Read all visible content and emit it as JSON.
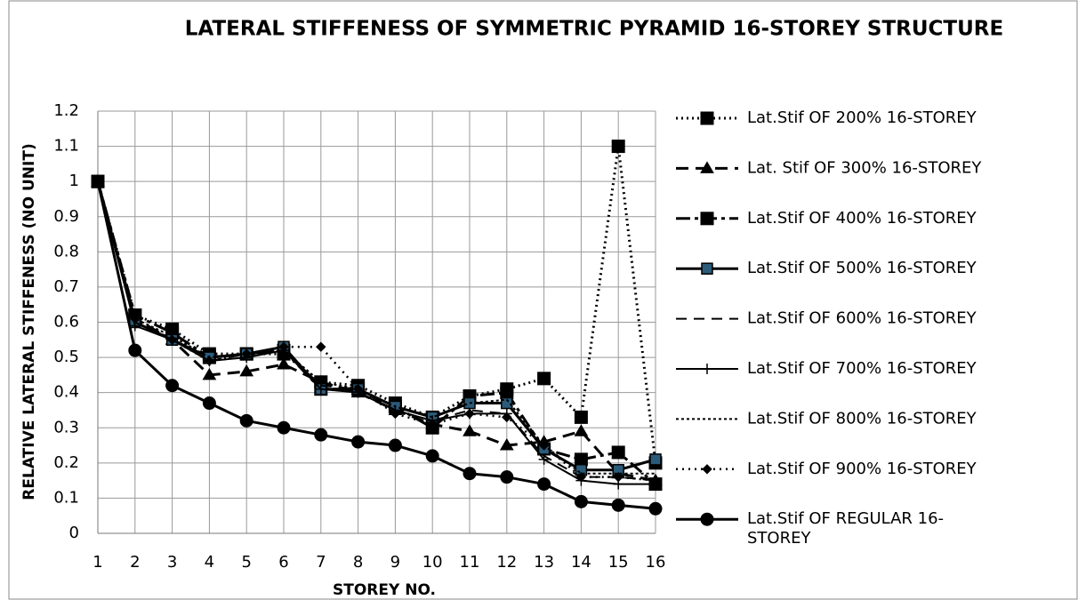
{
  "chart_data": {
    "type": "line",
    "title": "LATERAL STIFFENESS OF  SYMMETRIC PYRAMID 16-STOREY STRUCTURE",
    "xlabel": "STOREY NO.",
    "ylabel": "RELATIVE LATERAL STIFFENESS (NO UNIT)",
    "x": [
      1,
      2,
      3,
      4,
      5,
      6,
      7,
      8,
      9,
      10,
      11,
      12,
      13,
      14,
      15,
      16
    ],
    "xlim": [
      1,
      16
    ],
    "xticks": [
      1,
      2,
      3,
      4,
      5,
      6,
      7,
      8,
      9,
      10,
      11,
      12,
      13,
      14,
      15,
      16
    ],
    "ylim": [
      0,
      1.2
    ],
    "yticks": [
      0,
      0.1,
      0.2,
      0.3,
      0.4,
      0.5,
      0.6,
      0.7,
      0.8,
      0.9,
      1,
      1.1,
      1.2
    ],
    "grid": true,
    "legend": "right",
    "series": [
      {
        "name": "Lat.Stif OF 200% 16-STOREY",
        "color": "#000000",
        "values": [
          1,
          0.62,
          0.58,
          0.51,
          0.51,
          0.51,
          0.43,
          0.42,
          0.37,
          0.33,
          0.39,
          0.41,
          0.44,
          0.33,
          1.1,
          0.2
        ]
      },
      {
        "name": "Lat. Stif OF 300% 16-STOREY",
        "color": "#000000",
        "values": [
          1,
          0.61,
          0.55,
          0.45,
          0.46,
          0.48,
          0.43,
          0.4,
          0.35,
          0.31,
          0.29,
          0.25,
          0.26,
          0.29,
          0.17,
          0.15
        ]
      },
      {
        "name": "Lat.Stif OF 400% 16-STOREY",
        "color": "#000000",
        "values": [
          1,
          0.62,
          0.57,
          0.5,
          0.51,
          0.52,
          0.41,
          0.41,
          0.36,
          0.3,
          0.39,
          0.4,
          0.24,
          0.21,
          0.23,
          0.14
        ]
      },
      {
        "name": "Lat.Stif OF 500% 16-STOREY",
        "color": "#000000",
        "values": [
          1,
          0.6,
          0.55,
          0.5,
          0.51,
          0.53,
          0.41,
          0.41,
          0.36,
          0.33,
          0.37,
          0.37,
          0.24,
          0.18,
          0.18,
          0.21
        ]
      },
      {
        "name": "Lat.Stif OF 600% 16-STOREY",
        "color": "#000000",
        "values": [
          1,
          0.6,
          0.55,
          0.49,
          0.51,
          0.52,
          0.42,
          0.41,
          0.35,
          0.32,
          0.35,
          0.34,
          0.22,
          0.16,
          0.16,
          0.15
        ]
      },
      {
        "name": "Lat.Stif OF 700% 16-STOREY",
        "color": "#000000",
        "values": [
          1,
          0.59,
          0.55,
          0.49,
          0.5,
          0.52,
          0.41,
          0.4,
          0.35,
          0.32,
          0.34,
          0.34,
          0.21,
          0.15,
          0.14,
          0.14
        ]
      },
      {
        "name": "Lat.Stif OF 800% 16-STOREY",
        "color": "#000000",
        "values": [
          1,
          0.61,
          0.56,
          0.5,
          0.51,
          0.52,
          0.43,
          0.41,
          0.36,
          0.33,
          0.37,
          0.38,
          0.25,
          0.17,
          0.17,
          0.17
        ]
      },
      {
        "name": "Lat.Stif OF 900% 16-STOREY",
        "color": "#000000",
        "values": [
          1,
          0.61,
          0.55,
          0.49,
          0.51,
          0.53,
          0.53,
          0.41,
          0.34,
          0.31,
          0.34,
          0.33,
          0.25,
          0.16,
          0.16,
          0.15
        ]
      },
      {
        "name": "Lat.Stif OF REGULAR 16-STOREY",
        "color": "#000000",
        "values": [
          1,
          0.52,
          0.42,
          0.37,
          0.32,
          0.3,
          0.28,
          0.26,
          0.25,
          0.22,
          0.17,
          0.16,
          0.14,
          0.09,
          0.08,
          0.07
        ]
      }
    ]
  }
}
